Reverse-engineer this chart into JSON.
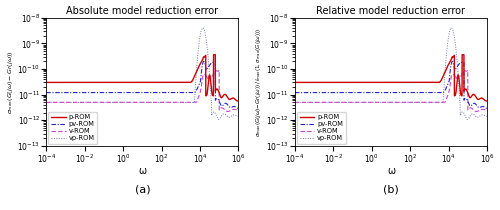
{
  "title_left": "Absolute model reduction error",
  "title_right": "Relative model reduction error",
  "xlabel": "ω",
  "label_a": "(a)",
  "label_b": "(b)",
  "legend": [
    "p-ROM",
    "v-ROM",
    "pv-ROM",
    "vp-ROM"
  ],
  "omega_min": 0.0001,
  "omega_max": 1000000.0,
  "ylim_min": 1e-13,
  "ylim_max": 1e-08,
  "color_p": "#cc0000",
  "color_v": "#cc44cc",
  "color_pv": "#2222cc",
  "color_vp": "#7777bb",
  "flat_p": 3e-11,
  "flat_v": 5e-12,
  "flat_pv": 1.2e-11,
  "flat_vp": 5e-12
}
